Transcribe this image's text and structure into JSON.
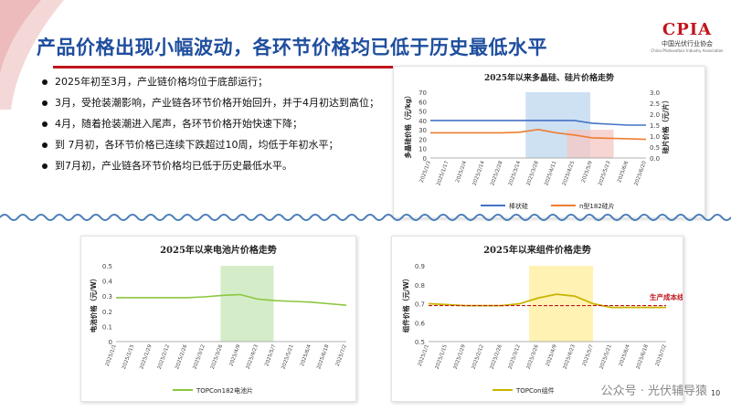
{
  "title": "产品价格出现小幅波动，各环节价格均已低于历史最低水平",
  "logo": {
    "mark": "CPIA",
    "name_cn": "中国光伏行业协会",
    "name_en": "China Photovoltaic Industry Association"
  },
  "bullets": [
    "2025年初至3月，产业链价格均位于底部运行；",
    "3月，受抢装潮影响，产业链各环节价格开始回升，并于4月初达到高位；",
    "4月，随着抢装潮进入尾声，各环节价格开始快速下降；",
    "到 7月初，各环节价格已连续下跌超过10周，均低于年初水平；",
    "到7月初，产业链各环节价格均已低于历史最低水平。"
  ],
  "page_number": "10",
  "watermark": "公众号 · 光伏辅导猿",
  "colors": {
    "title": "#1f4e9e",
    "accent_red": "#c0161c",
    "silicon_line": "#4472c4",
    "wafer_line": "#ed7d31",
    "cell_line": "#8cc63f",
    "module_line": "#c9b400",
    "blue_shade": "#bdd7ee",
    "red_shade": "#f4c7c3",
    "green_shade": "#c6e7b5",
    "yellow_shade": "#ffee99",
    "cost_line": "#c0161c",
    "wave": "#4b7db8"
  },
  "chart_data": [
    {
      "type": "line",
      "title": "2025年以来多晶硅、硅片价格走势",
      "x": [
        "2025/1/3",
        "2025/1/17",
        "2025/2/4",
        "2025/2/14",
        "2025/2/28",
        "2025/3/14",
        "2025/3/28",
        "2025/4/11",
        "2025/4/25",
        "2025/5/9",
        "2025/5/23",
        "2025/6/6",
        "2025/6/20"
      ],
      "ylabel": "多晶硅价格（元/kg）",
      "y2label": "硅片价格（元/片）",
      "ylim": [
        0,
        70
      ],
      "y2lim": [
        0,
        3
      ],
      "yticks": [
        "0",
        "10",
        "20",
        "30",
        "40",
        "50",
        "60",
        "70"
      ],
      "y2ticks": [
        "0.0",
        "0.5",
        "1.0",
        "1.5",
        "2.0",
        "2.5",
        "3.0"
      ],
      "series": [
        {
          "name": "棒状硅",
          "axis": "left",
          "values": [
            40,
            40,
            40,
            40,
            40,
            40,
            40,
            40,
            40,
            37,
            36,
            35,
            35
          ]
        },
        {
          "name": "n型182硅片",
          "axis": "right",
          "values": [
            1.15,
            1.15,
            1.15,
            1.15,
            1.15,
            1.18,
            1.3,
            1.15,
            1.05,
            0.92,
            0.9,
            0.88,
            0.85
          ]
        }
      ]
    },
    {
      "type": "line",
      "title": "2025年以来电池片价格走势",
      "x": [
        "2025/1/1",
        "2025/1/15",
        "2025/1/29",
        "2025/2/12",
        "2025/2/26",
        "2025/3/12",
        "2025/3/26",
        "2025/4/9",
        "2025/4/23",
        "2025/5/7",
        "2025/5/21",
        "2025/6/4",
        "2025/6/18",
        "2025/7/2"
      ],
      "ylabel": "电池价格（元/W）",
      "ylim": [
        0,
        0.5
      ],
      "yticks": [
        "0",
        "0.1",
        "0.2",
        "0.3",
        "0.4",
        "0.5"
      ],
      "series": [
        {
          "name": "TOPCon182电池片",
          "values": [
            0.29,
            0.29,
            0.29,
            0.29,
            0.29,
            0.295,
            0.305,
            0.31,
            0.28,
            0.27,
            0.265,
            0.26,
            0.25,
            0.24
          ]
        }
      ]
    },
    {
      "type": "line",
      "title": "2025年以来组件价格走势",
      "x": [
        "2025/1/1",
        "2025/1/15",
        "2025/1/29",
        "2025/2/12",
        "2025/2/26",
        "2025/3/12",
        "2025/3/26",
        "2025/4/9",
        "2025/4/23",
        "2025/5/7",
        "2025/5/21",
        "2025/6/4",
        "2025/6/18",
        "2025/7/2"
      ],
      "ylabel": "组件价格（元/W）",
      "ylim": [
        0.5,
        0.9
      ],
      "yticks": [
        "0.5",
        "0.6",
        "0.7",
        "0.8",
        "0.9"
      ],
      "annotation": "生产成本线",
      "series": [
        {
          "name": "TOPCon组件",
          "values": [
            0.7,
            0.695,
            0.69,
            0.69,
            0.69,
            0.7,
            0.73,
            0.75,
            0.74,
            0.7,
            0.68,
            0.68,
            0.68,
            0.68
          ]
        },
        {
          "name": "生产成本线",
          "values": [
            0.69,
            0.69,
            0.69,
            0.69,
            0.69,
            0.69,
            0.69,
            0.69,
            0.69,
            0.69,
            0.69,
            0.69,
            0.69,
            0.69
          ]
        }
      ]
    }
  ]
}
